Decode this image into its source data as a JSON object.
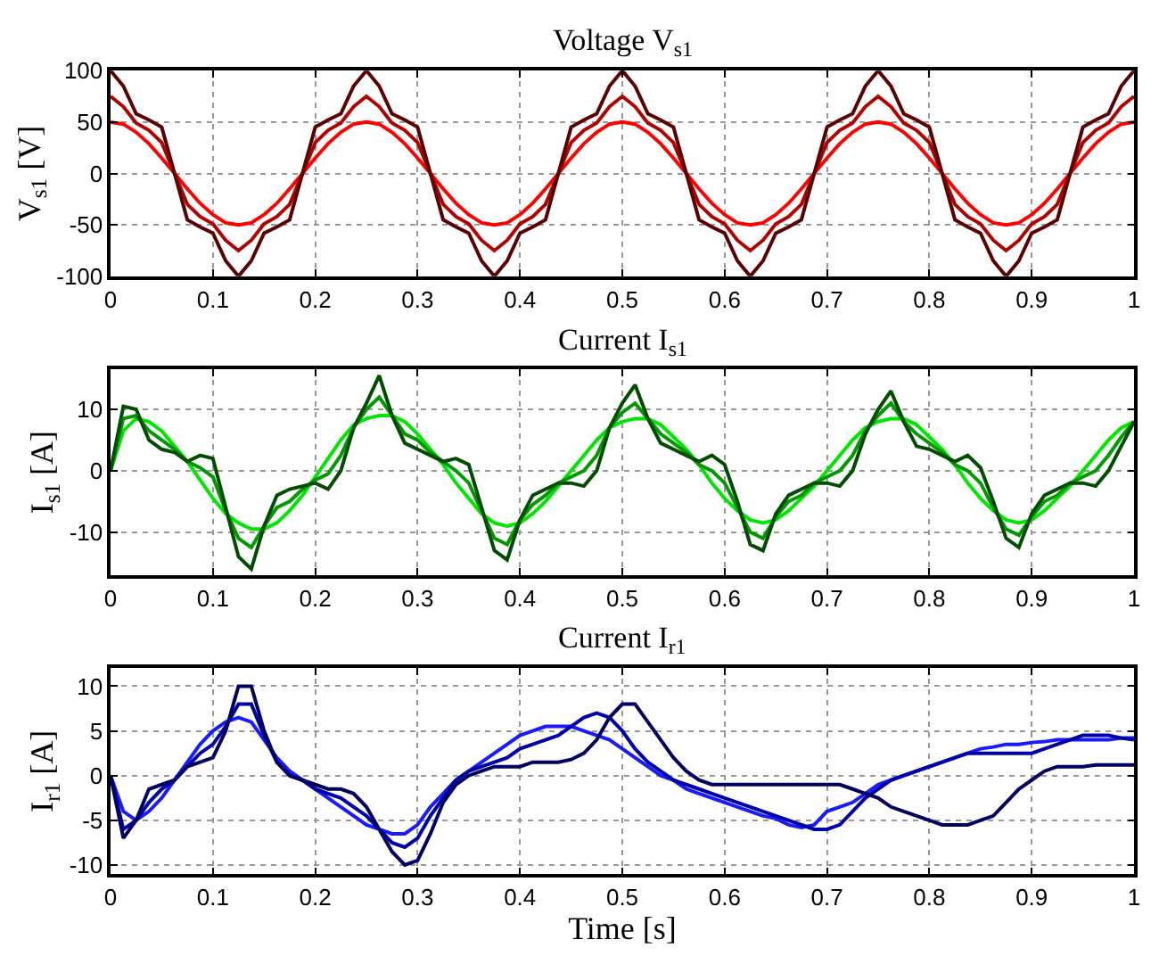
{
  "chart_data": [
    {
      "type": "line",
      "title": "Voltage V$_{s1}$",
      "ylabel": "V$_{s1}$ [V]",
      "xlim": [
        0,
        1
      ],
      "xticks": [
        0,
        0.1,
        0.2,
        0.3,
        0.4,
        0.5,
        0.6,
        0.7,
        0.8,
        0.9,
        1
      ],
      "ylim": [
        -100,
        100
      ],
      "yticks": [
        -100,
        -50,
        0,
        50,
        100
      ],
      "grid": true,
      "x": [
        0,
        0.0125,
        0.025,
        0.0375,
        0.05,
        0.0625,
        0.075,
        0.0875,
        0.1,
        0.1125,
        0.125,
        0.1375,
        0.15,
        0.1625,
        0.175,
        0.1875,
        0.2,
        0.2125,
        0.225,
        0.2375,
        0.25,
        0.2625,
        0.275,
        0.2875,
        0.3,
        0.3125,
        0.325,
        0.3375,
        0.35,
        0.3625,
        0.375,
        0.3875,
        0.4,
        0.4125,
        0.425,
        0.4375,
        0.45,
        0.4625,
        0.475,
        0.4875,
        0.5,
        0.5125,
        0.525,
        0.5375,
        0.55,
        0.5625,
        0.575,
        0.5875,
        0.6,
        0.6125,
        0.625,
        0.6375,
        0.65,
        0.6625,
        0.675,
        0.6875,
        0.7,
        0.7125,
        0.725,
        0.7375,
        0.75,
        0.7625,
        0.775,
        0.7875,
        0.8,
        0.8125,
        0.825,
        0.8375,
        0.85,
        0.8625,
        0.875,
        0.8875,
        0.9,
        0.9125,
        0.925,
        0.9375,
        0.95,
        0.9625,
        0.975,
        0.9875,
        1
      ],
      "series": [
        {
          "color": "#ff0000",
          "values": [
            50,
            48,
            40,
            29,
            15,
            0,
            -15,
            -29,
            -40,
            -48,
            -50,
            -48,
            -40,
            -29,
            -15,
            0,
            15,
            29,
            40,
            48,
            50,
            48,
            40,
            29,
            15,
            0,
            -15,
            -29,
            -40,
            -48,
            -50,
            -48,
            -40,
            -29,
            -15,
            0,
            15,
            29,
            40,
            48,
            50,
            48,
            40,
            29,
            15,
            0,
            -15,
            -29,
            -40,
            -48,
            -50,
            -48,
            -40,
            -29,
            -15,
            0,
            15,
            29,
            40,
            48,
            50,
            48,
            40,
            29,
            15,
            0,
            -15,
            -29,
            -40,
            -48,
            -50,
            -48,
            -40,
            -29,
            -15,
            0,
            15,
            29,
            40,
            48,
            50
          ]
        },
        {
          "color": "#b00000",
          "values": [
            75,
            65,
            49,
            42,
            30,
            0,
            -30,
            -42,
            -49,
            -65,
            -75,
            -65,
            -49,
            -42,
            -30,
            0,
            30,
            42,
            49,
            65,
            75,
            65,
            49,
            42,
            30,
            0,
            -30,
            -42,
            -49,
            -65,
            -75,
            -65,
            -49,
            -42,
            -30,
            0,
            30,
            42,
            49,
            65,
            75,
            65,
            49,
            42,
            30,
            0,
            -30,
            -42,
            -49,
            -65,
            -75,
            -65,
            -49,
            -42,
            -30,
            0,
            30,
            42,
            49,
            65,
            75,
            65,
            49,
            42,
            30,
            0,
            -30,
            -42,
            -49,
            -65,
            -75,
            -65,
            -49,
            -42,
            -30,
            0,
            30,
            42,
            49,
            65,
            75
          ]
        },
        {
          "color": "#5a0000",
          "values": [
            100,
            85,
            58,
            52,
            45,
            0,
            -45,
            -52,
            -58,
            -85,
            -100,
            -85,
            -58,
            -52,
            -45,
            0,
            45,
            52,
            58,
            85,
            100,
            85,
            58,
            52,
            45,
            0,
            -45,
            -52,
            -58,
            -85,
            -100,
            -85,
            -58,
            -52,
            -45,
            0,
            45,
            52,
            58,
            85,
            100,
            85,
            58,
            52,
            45,
            0,
            -45,
            -52,
            -58,
            -85,
            -100,
            -85,
            -58,
            -52,
            -45,
            0,
            45,
            52,
            58,
            85,
            100,
            85,
            58,
            52,
            45,
            0,
            -45,
            -52,
            -58,
            -85,
            -100,
            -85,
            -58,
            -52,
            -45,
            0,
            45,
            52,
            58,
            85,
            100
          ]
        }
      ]
    },
    {
      "type": "line",
      "title": "Current I$_{s1}$",
      "ylabel": "I$_{s1}$ [A]",
      "xlim": [
        0,
        1
      ],
      "xticks": [
        0,
        0.1,
        0.2,
        0.3,
        0.4,
        0.5,
        0.6,
        0.7,
        0.8,
        0.9,
        1
      ],
      "ylim": [
        -17,
        16.5
      ],
      "yticks": [
        -10,
        0,
        10
      ],
      "grid": true,
      "x": [
        0,
        0.0125,
        0.025,
        0.0375,
        0.05,
        0.0625,
        0.075,
        0.0875,
        0.1,
        0.1125,
        0.125,
        0.1375,
        0.15,
        0.1625,
        0.175,
        0.1875,
        0.2,
        0.2125,
        0.225,
        0.2375,
        0.25,
        0.2625,
        0.275,
        0.2875,
        0.3,
        0.3125,
        0.325,
        0.3375,
        0.35,
        0.3625,
        0.375,
        0.3875,
        0.4,
        0.4125,
        0.425,
        0.4375,
        0.45,
        0.4625,
        0.475,
        0.4875,
        0.5,
        0.5125,
        0.525,
        0.5375,
        0.55,
        0.5625,
        0.575,
        0.5875,
        0.6,
        0.6125,
        0.625,
        0.6375,
        0.65,
        0.6625,
        0.675,
        0.6875,
        0.7,
        0.7125,
        0.725,
        0.7375,
        0.75,
        0.7625,
        0.775,
        0.7875,
        0.8,
        0.8125,
        0.825,
        0.8375,
        0.85,
        0.8625,
        0.875,
        0.8875,
        0.9,
        0.9125,
        0.925,
        0.9375,
        0.95,
        0.9625,
        0.975,
        0.9875,
        1
      ],
      "series": [
        {
          "color": "#00e600",
          "values": [
            0,
            6.5,
            8.5,
            8,
            6.5,
            4,
            1.5,
            -1.5,
            -4.5,
            -7,
            -8.5,
            -9.5,
            -9.5,
            -8.5,
            -6.5,
            -4,
            -1,
            2,
            5,
            7.5,
            8.5,
            9,
            9,
            8,
            6,
            3.5,
            1,
            -2,
            -4.5,
            -7,
            -8.5,
            -9,
            -8.5,
            -7,
            -5,
            -2.5,
            0,
            2.5,
            5,
            7,
            8,
            8.5,
            8.5,
            7.5,
            5.5,
            3.5,
            1,
            -2,
            -4.5,
            -6.5,
            -8,
            -8.5,
            -8,
            -6.5,
            -4.5,
            -2.5,
            0,
            2.5,
            5,
            7,
            8,
            8.5,
            8.5,
            7.5,
            5.5,
            3.5,
            1,
            -2,
            -4.5,
            -6.5,
            -8,
            -8.5,
            -8,
            -6.5,
            -4.5,
            -2.5,
            0,
            2.5,
            5,
            7,
            8
          ]
        },
        {
          "color": "#009a00",
          "values": [
            0,
            8.5,
            9,
            6.5,
            5,
            3.5,
            1.5,
            0.5,
            -1,
            -6.5,
            -11,
            -12.5,
            -9,
            -6,
            -5,
            -3,
            -1.5,
            -0.5,
            2.5,
            7,
            10,
            12,
            9,
            6,
            5,
            3,
            1.5,
            0,
            -2,
            -6.5,
            -11,
            -12,
            -8,
            -5.5,
            -4,
            -2,
            -1,
            0,
            2.5,
            7,
            9.5,
            11,
            8.5,
            6,
            4.5,
            3,
            1,
            0,
            -2,
            -6,
            -10,
            -11,
            -7.5,
            -5,
            -4,
            -2,
            -1,
            0,
            2.5,
            6.5,
            9,
            11,
            8,
            6,
            4.5,
            3,
            1,
            0,
            -2,
            -6,
            -9.5,
            -10.5,
            -7.5,
            -5,
            -4,
            -2,
            -1,
            0,
            2.5,
            5.5,
            8
          ]
        },
        {
          "color": "#004d00",
          "values": [
            0,
            10.5,
            10,
            5,
            3.5,
            3,
            1.5,
            2.5,
            2,
            -6,
            -14,
            -16,
            -9,
            -4,
            -3,
            -2.5,
            -2,
            -3,
            0,
            7,
            11,
            15.5,
            9,
            4.5,
            3.5,
            2.5,
            1.5,
            2,
            1,
            -6,
            -13,
            -14.5,
            -8,
            -4,
            -3,
            -2,
            -2,
            -2.5,
            0,
            7,
            11,
            14,
            8.5,
            4.5,
            3.5,
            2.5,
            1.5,
            2.5,
            1,
            -5,
            -12,
            -13,
            -7,
            -4,
            -3,
            -2,
            -2,
            -2.5,
            0,
            6,
            10,
            13,
            8,
            4,
            3.5,
            2.5,
            1.5,
            2.5,
            0.5,
            -5,
            -11,
            -12.5,
            -7,
            -4,
            -3,
            -2,
            -2,
            -2.5,
            0,
            4,
            8
          ]
        }
      ]
    },
    {
      "type": "line",
      "title": "Current I$_{r1}$",
      "ylabel": "I$_{r1}$ [A]",
      "xlabel": "Time [s]",
      "xlim": [
        0,
        1
      ],
      "xticks": [
        0,
        0.1,
        0.2,
        0.3,
        0.4,
        0.5,
        0.6,
        0.7,
        0.8,
        0.9,
        1
      ],
      "ylim": [
        -11,
        12
      ],
      "yticks": [
        -10,
        -5,
        0,
        5,
        10
      ],
      "grid": true,
      "x": [
        0,
        0.0125,
        0.025,
        0.0375,
        0.05,
        0.0625,
        0.075,
        0.0875,
        0.1,
        0.1125,
        0.125,
        0.1375,
        0.15,
        0.1625,
        0.175,
        0.1875,
        0.2,
        0.2125,
        0.225,
        0.2375,
        0.25,
        0.2625,
        0.275,
        0.2875,
        0.3,
        0.3125,
        0.325,
        0.3375,
        0.35,
        0.3625,
        0.375,
        0.3875,
        0.4,
        0.4125,
        0.425,
        0.4375,
        0.45,
        0.4625,
        0.475,
        0.4875,
        0.5,
        0.5125,
        0.525,
        0.5375,
        0.55,
        0.5625,
        0.575,
        0.5875,
        0.6,
        0.6125,
        0.625,
        0.6375,
        0.65,
        0.6625,
        0.675,
        0.6875,
        0.7,
        0.7125,
        0.725,
        0.7375,
        0.75,
        0.7625,
        0.775,
        0.7875,
        0.8,
        0.8125,
        0.825,
        0.8375,
        0.85,
        0.8625,
        0.875,
        0.8875,
        0.9,
        0.9125,
        0.925,
        0.9375,
        0.95,
        0.9625,
        0.975,
        0.9875,
        1
      ],
      "series": [
        {
          "color": "#1a1aff",
          "values": [
            0,
            -4,
            -5,
            -4,
            -2.5,
            -0.5,
            1.5,
            3.5,
            5,
            6,
            6.5,
            6,
            4,
            2,
            0.5,
            -0.5,
            -1.5,
            -2.5,
            -3.5,
            -4.5,
            -5.5,
            -6,
            -6.5,
            -6.5,
            -5.5,
            -3.5,
            -2,
            -0.5,
            0.5,
            1.5,
            2.5,
            3.5,
            4.5,
            5,
            5.5,
            5.5,
            5.5,
            5,
            4.5,
            4,
            3,
            2,
            1,
            0,
            -0.5,
            -1.5,
            -2,
            -2.5,
            -3,
            -3.5,
            -4,
            -4.5,
            -4.8,
            -5.5,
            -5.8,
            -5.5,
            -4,
            -3.5,
            -3,
            -2,
            -1,
            -0.5,
            0,
            0.5,
            1,
            1.5,
            2,
            2.5,
            3,
            3.2,
            3.5,
            3.5,
            3.7,
            3.8,
            4,
            4,
            4,
            4,
            4,
            4.2,
            4.2
          ]
        },
        {
          "color": "#0000a8",
          "values": [
            0,
            -6,
            -5,
            -3,
            -1.5,
            -0.5,
            1,
            2.5,
            3.5,
            5.5,
            8,
            8,
            4.5,
            1.5,
            0,
            -0.5,
            -1.5,
            -2,
            -2.5,
            -3.5,
            -4.5,
            -6,
            -7.5,
            -8,
            -7,
            -4.5,
            -2.5,
            -0.5,
            0.5,
            1,
            1.5,
            2,
            3,
            3.5,
            4,
            4.5,
            5.5,
            6.5,
            7,
            6.5,
            5,
            3,
            1.5,
            0.5,
            -0.5,
            -1,
            -1.5,
            -2,
            -2.5,
            -3,
            -3.5,
            -4,
            -4.5,
            -5,
            -5.5,
            -6,
            -6,
            -5.5,
            -4,
            -2.5,
            -1.5,
            -0.5,
            0,
            0.5,
            1,
            1.5,
            2,
            2.5,
            2.5,
            2.5,
            2.5,
            2.5,
            2.5,
            3,
            3.5,
            4,
            4.5,
            4.5,
            4.5,
            4.2,
            4
          ]
        },
        {
          "color": "#000060",
          "values": [
            0,
            -7,
            -5,
            -1.5,
            -1,
            -0.5,
            1,
            1.5,
            2,
            5,
            10,
            10,
            5,
            1.5,
            0,
            -0.5,
            -1,
            -1.5,
            -1.5,
            -2,
            -3.5,
            -6,
            -8.5,
            -10,
            -9.5,
            -6.5,
            -3,
            -1,
            0,
            0.5,
            1,
            1,
            1,
            1.5,
            1.5,
            1.5,
            1.8,
            2.5,
            4,
            6.5,
            8,
            8,
            6,
            4,
            2,
            0.5,
            -0.5,
            -1,
            -1,
            -1,
            -1,
            -1,
            -1,
            -1,
            -1,
            -1,
            -1,
            -1,
            -1.5,
            -2,
            -2.5,
            -3.5,
            -4,
            -4.5,
            -5,
            -5.5,
            -5.5,
            -5.5,
            -5,
            -4.5,
            -3,
            -1.5,
            -0.5,
            0.5,
            1,
            1,
            1,
            1.2,
            1.2,
            1.2,
            1.2
          ]
        }
      ]
    }
  ]
}
